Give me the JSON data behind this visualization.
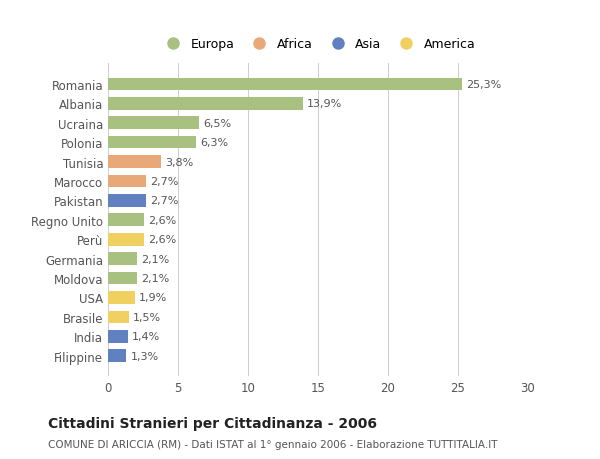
{
  "countries": [
    "Romania",
    "Albania",
    "Ucraina",
    "Polonia",
    "Tunisia",
    "Marocco",
    "Pakistan",
    "Regno Unito",
    "Perù",
    "Germania",
    "Moldova",
    "USA",
    "Brasile",
    "India",
    "Filippine"
  ],
  "values": [
    25.3,
    13.9,
    6.5,
    6.3,
    3.8,
    2.7,
    2.7,
    2.6,
    2.6,
    2.1,
    2.1,
    1.9,
    1.5,
    1.4,
    1.3
  ],
  "continents": [
    "Europa",
    "Europa",
    "Europa",
    "Europa",
    "Africa",
    "Africa",
    "Asia",
    "Europa",
    "America",
    "Europa",
    "Europa",
    "America",
    "America",
    "Asia",
    "Asia"
  ],
  "colors": {
    "Europa": "#a8c080",
    "Africa": "#e8a878",
    "Asia": "#6080c0",
    "America": "#f0d060"
  },
  "legend_entries": [
    "Europa",
    "Africa",
    "Asia",
    "America"
  ],
  "title": "Cittadini Stranieri per Cittadinanza - 2006",
  "subtitle": "COMUNE DI ARICCIA (RM) - Dati ISTAT al 1° gennaio 2006 - Elaborazione TUTTITALIA.IT",
  "xlim": [
    0,
    30
  ],
  "xticks": [
    0,
    5,
    10,
    15,
    20,
    25,
    30
  ],
  "background_color": "#ffffff",
  "grid_color": "#cccccc"
}
